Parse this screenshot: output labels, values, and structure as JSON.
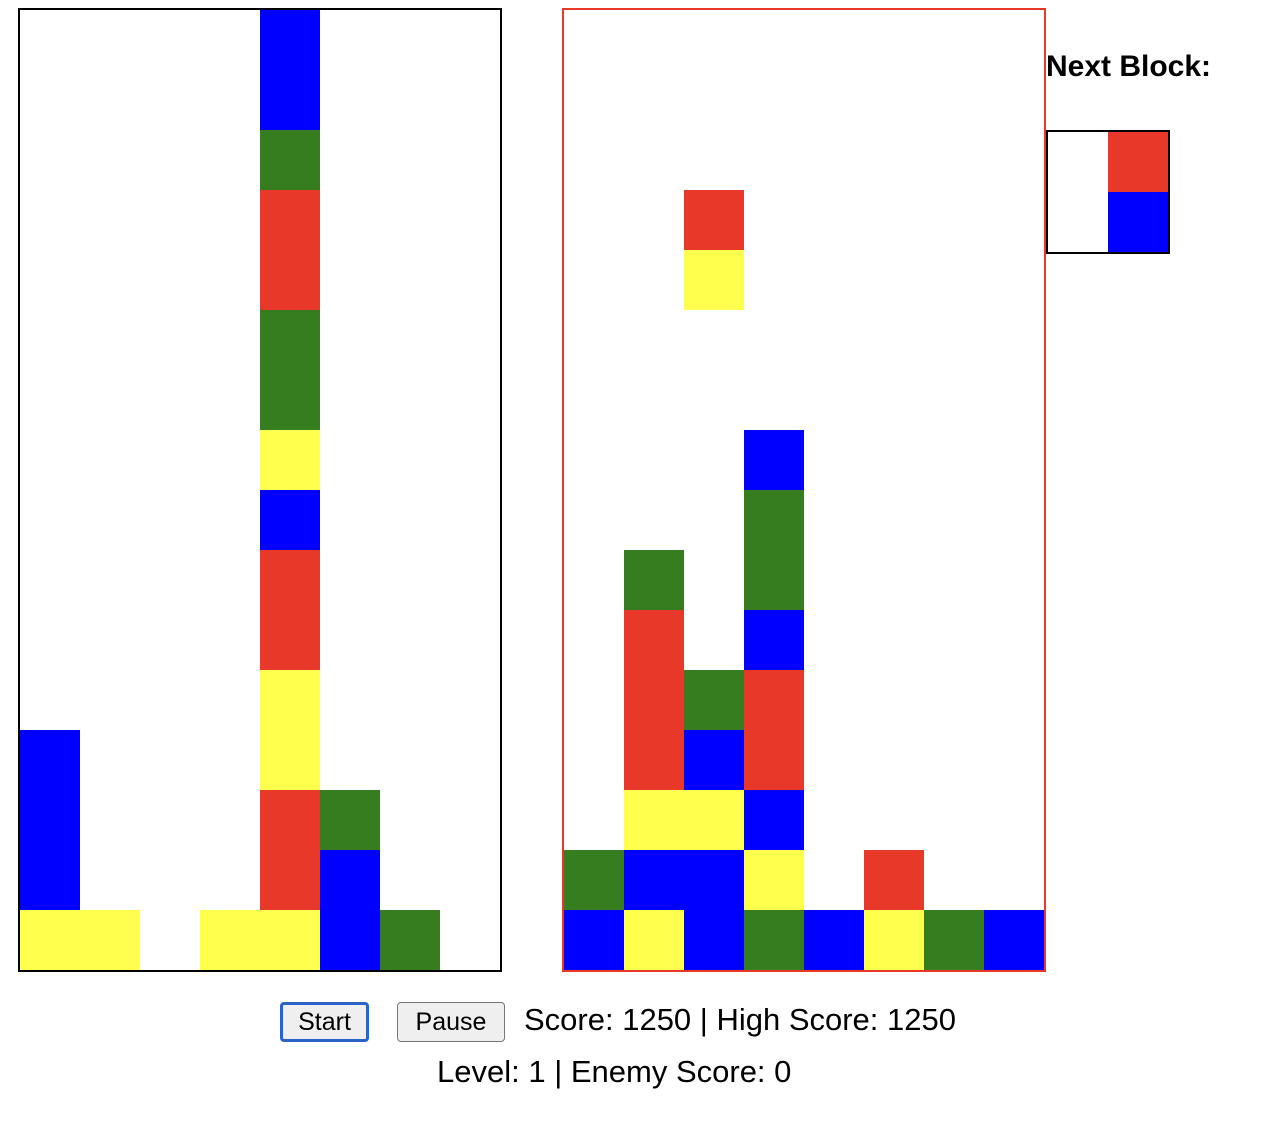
{
  "colors": {
    "blue": "#0000ff",
    "green": "#367d20",
    "red": "#e8382a",
    "yellow": "#ffff4d",
    "left_border": "#000000",
    "right_border": "#e8382a"
  },
  "boards": {
    "cols": 8,
    "rows": 16,
    "left": {
      "cells": [
        {
          "col": 4,
          "row": 0,
          "color": "blue"
        },
        {
          "col": 4,
          "row": 1,
          "color": "blue"
        },
        {
          "col": 4,
          "row": 2,
          "color": "green"
        },
        {
          "col": 4,
          "row": 3,
          "color": "red"
        },
        {
          "col": 4,
          "row": 4,
          "color": "red"
        },
        {
          "col": 4,
          "row": 5,
          "color": "green"
        },
        {
          "col": 4,
          "row": 6,
          "color": "green"
        },
        {
          "col": 4,
          "row": 7,
          "color": "yellow"
        },
        {
          "col": 4,
          "row": 8,
          "color": "blue"
        },
        {
          "col": 4,
          "row": 9,
          "color": "red"
        },
        {
          "col": 4,
          "row": 10,
          "color": "red"
        },
        {
          "col": 4,
          "row": 11,
          "color": "yellow"
        },
        {
          "col": 4,
          "row": 12,
          "color": "yellow"
        },
        {
          "col": 0,
          "row": 12,
          "color": "blue"
        },
        {
          "col": 0,
          "row": 13,
          "color": "blue"
        },
        {
          "col": 4,
          "row": 13,
          "color": "red"
        },
        {
          "col": 5,
          "row": 13,
          "color": "green"
        },
        {
          "col": 0,
          "row": 14,
          "color": "blue"
        },
        {
          "col": 4,
          "row": 14,
          "color": "red"
        },
        {
          "col": 5,
          "row": 14,
          "color": "blue"
        },
        {
          "col": 0,
          "row": 15,
          "color": "yellow"
        },
        {
          "col": 1,
          "row": 15,
          "color": "yellow"
        },
        {
          "col": 3,
          "row": 15,
          "color": "yellow"
        },
        {
          "col": 4,
          "row": 15,
          "color": "yellow"
        },
        {
          "col": 5,
          "row": 15,
          "color": "blue"
        },
        {
          "col": 6,
          "row": 15,
          "color": "green"
        }
      ]
    },
    "right": {
      "cells": [
        {
          "col": 2,
          "row": 3,
          "color": "red"
        },
        {
          "col": 2,
          "row": 4,
          "color": "yellow"
        },
        {
          "col": 3,
          "row": 7,
          "color": "blue"
        },
        {
          "col": 3,
          "row": 8,
          "color": "green"
        },
        {
          "col": 1,
          "row": 9,
          "color": "green"
        },
        {
          "col": 3,
          "row": 9,
          "color": "green"
        },
        {
          "col": 1,
          "row": 10,
          "color": "red"
        },
        {
          "col": 3,
          "row": 10,
          "color": "blue"
        },
        {
          "col": 1,
          "row": 11,
          "color": "red"
        },
        {
          "col": 2,
          "row": 11,
          "color": "green"
        },
        {
          "col": 3,
          "row": 11,
          "color": "red"
        },
        {
          "col": 1,
          "row": 12,
          "color": "red"
        },
        {
          "col": 2,
          "row": 12,
          "color": "blue"
        },
        {
          "col": 3,
          "row": 12,
          "color": "red"
        },
        {
          "col": 1,
          "row": 13,
          "color": "yellow"
        },
        {
          "col": 2,
          "row": 13,
          "color": "yellow"
        },
        {
          "col": 3,
          "row": 13,
          "color": "blue"
        },
        {
          "col": 0,
          "row": 14,
          "color": "green"
        },
        {
          "col": 1,
          "row": 14,
          "color": "blue"
        },
        {
          "col": 2,
          "row": 14,
          "color": "blue"
        },
        {
          "col": 3,
          "row": 14,
          "color": "yellow"
        },
        {
          "col": 5,
          "row": 14,
          "color": "red"
        },
        {
          "col": 0,
          "row": 15,
          "color": "blue"
        },
        {
          "col": 1,
          "row": 15,
          "color": "yellow"
        },
        {
          "col": 2,
          "row": 15,
          "color": "blue"
        },
        {
          "col": 3,
          "row": 15,
          "color": "green"
        },
        {
          "col": 4,
          "row": 15,
          "color": "blue"
        },
        {
          "col": 5,
          "row": 15,
          "color": "yellow"
        },
        {
          "col": 6,
          "row": 15,
          "color": "green"
        },
        {
          "col": 7,
          "row": 15,
          "color": "blue"
        }
      ]
    }
  },
  "next_block": {
    "label": "Next Block:",
    "cells": [
      {
        "col": 1,
        "row": 0,
        "color": "red"
      },
      {
        "col": 1,
        "row": 1,
        "color": "blue"
      }
    ]
  },
  "controls": {
    "start_label": "Start",
    "pause_label": "Pause"
  },
  "status": {
    "line1": "Score: 1250 | High Score: 1250",
    "line2": "Level: 1 | Enemy Score: 0"
  }
}
